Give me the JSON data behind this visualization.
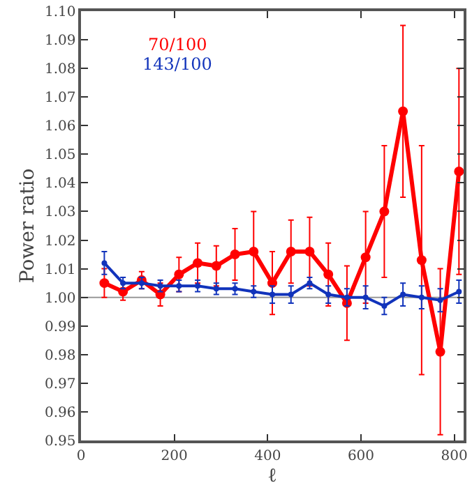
{
  "chart_data": {
    "type": "line",
    "xlabel": "ℓ",
    "ylabel": "Power ratio",
    "x": [
      50,
      90,
      130,
      170,
      210,
      250,
      290,
      330,
      370,
      410,
      450,
      490,
      530,
      570,
      610,
      650,
      690,
      730,
      770,
      810
    ],
    "series": [
      {
        "name": "70/100",
        "color": "#ff0000",
        "values": [
          1.005,
          1.002,
          1.006,
          1.001,
          1.008,
          1.012,
          1.011,
          1.015,
          1.016,
          1.005,
          1.016,
          1.016,
          1.008,
          0.998,
          1.014,
          1.03,
          1.065,
          1.013,
          0.981,
          1.044
        ],
        "errors": [
          0.005,
          0.003,
          0.003,
          0.004,
          0.006,
          0.007,
          0.007,
          0.009,
          0.014,
          0.011,
          0.011,
          0.012,
          0.011,
          0.013,
          0.016,
          0.023,
          0.03,
          0.04,
          0.029,
          0.036
        ]
      },
      {
        "name": "143/100",
        "color": "#1133bb",
        "values": [
          1.012,
          1.005,
          1.005,
          1.004,
          1.004,
          1.004,
          1.003,
          1.003,
          1.002,
          1.001,
          1.001,
          1.005,
          1.001,
          1.0,
          1.0,
          0.997,
          1.001,
          1.0,
          0.999,
          1.002
        ],
        "errors": [
          0.004,
          0.002,
          0.002,
          0.002,
          0.002,
          0.002,
          0.002,
          0.002,
          0.002,
          0.003,
          0.003,
          0.002,
          0.003,
          0.003,
          0.004,
          0.003,
          0.004,
          0.004,
          0.004,
          0.004
        ]
      }
    ],
    "xlim": [
      0,
      820
    ],
    "xticks": [
      0,
      200,
      400,
      600,
      800
    ],
    "ylim": [
      0.95,
      1.1
    ],
    "yticks": [
      {
        "value": 0.95,
        "label": "0.95"
      },
      {
        "value": 0.96,
        "label": "0.96"
      },
      {
        "value": 0.97,
        "label": "0.97"
      },
      {
        "value": 0.98,
        "label": "0.98"
      },
      {
        "value": 0.99,
        "label": "0.99"
      },
      {
        "value": 1.0,
        "label": "1.00"
      },
      {
        "value": 1.01,
        "label": "1.01"
      },
      {
        "value": 1.02,
        "label": "1.02"
      },
      {
        "value": 1.03,
        "label": "1.03"
      },
      {
        "value": 1.04,
        "label": "1.04"
      },
      {
        "value": 1.05,
        "label": "1.05"
      },
      {
        "value": 1.06,
        "label": "1.06"
      },
      {
        "value": 1.07,
        "label": "1.07"
      },
      {
        "value": 1.08,
        "label": "1.08"
      },
      {
        "value": 1.09,
        "label": "1.09"
      },
      {
        "value": 1.1,
        "label": "1.10"
      }
    ],
    "ref_lines": [
      {
        "axis": "y",
        "value": 1.0,
        "color": "#999999"
      }
    ],
    "marker": "circle",
    "line_style": "solid",
    "grid": false,
    "legend": "top left"
  }
}
